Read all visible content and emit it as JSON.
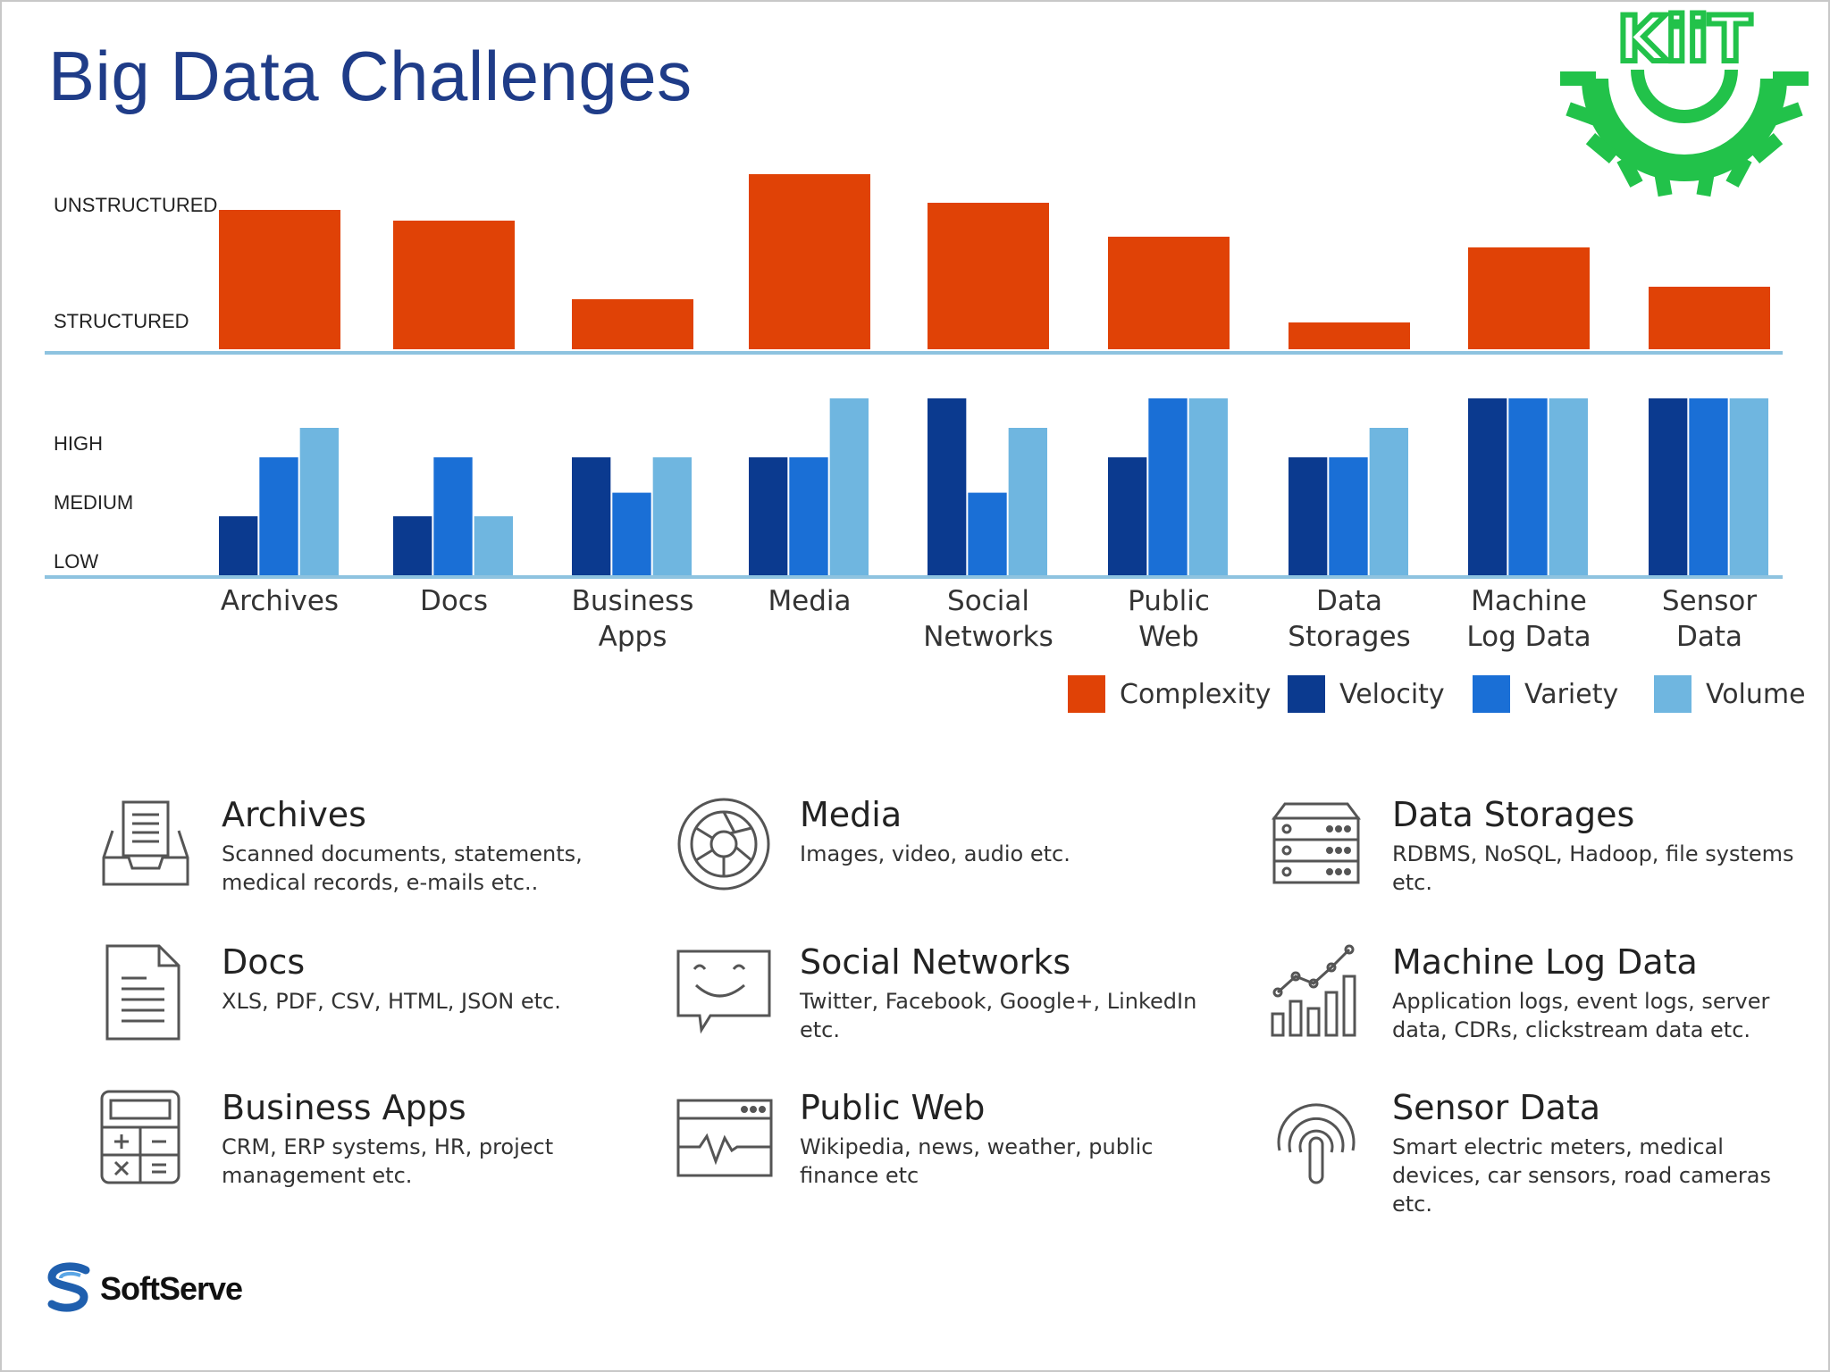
{
  "title": "Big Data Challenges",
  "logo": {
    "text": "KiiT",
    "color": "#22c24a"
  },
  "brand": {
    "name": "SoftServe",
    "color": "#1f5fae"
  },
  "colors": {
    "Complexity": "#e04206",
    "Velocity": "#0b3a8f",
    "Variety": "#1a6fd6",
    "Volume": "#6fb6e0",
    "axis": "#8ec3e0"
  },
  "chart_data": [
    {
      "type": "bar",
      "panel": "complexity",
      "categories": [
        "Archives",
        "Docs",
        "Business Apps",
        "Media",
        "Social Networks",
        "Public Web",
        "Data Storages",
        "Machine Log Data",
        "Sensor Data"
      ],
      "series": [
        {
          "name": "Complexity",
          "values": [
            0.78,
            0.72,
            0.28,
            0.98,
            0.82,
            0.63,
            0.15,
            0.57,
            0.35
          ]
        }
      ],
      "ytick_labels": [
        "STRUCTURED",
        "UNSTRUCTURED"
      ],
      "ylim": [
        0,
        1
      ]
    },
    {
      "type": "bar",
      "panel": "velocity-variety-volume",
      "categories": [
        "Archives",
        "Docs",
        "Business Apps",
        "Media",
        "Social Networks",
        "Public Web",
        "Data Storages",
        "Machine Log Data",
        "Sensor Data"
      ],
      "series": [
        {
          "name": "Velocity",
          "values": [
            1,
            1,
            2,
            2,
            3,
            2,
            2,
            3,
            3
          ]
        },
        {
          "name": "Variety",
          "values": [
            2,
            2,
            1.4,
            2,
            1.4,
            3,
            2,
            3,
            3
          ]
        },
        {
          "name": "Volume",
          "values": [
            2.5,
            1,
            2,
            3,
            2.5,
            3,
            2.5,
            3,
            3
          ]
        }
      ],
      "ytick_labels": [
        "LOW",
        "MEDIUM",
        "HIGH"
      ],
      "ylim": [
        0,
        3
      ]
    }
  ],
  "category_labels": [
    [
      "Archives"
    ],
    [
      "Docs"
    ],
    [
      "Business",
      "Apps"
    ],
    [
      "Media"
    ],
    [
      "Social",
      "Networks"
    ],
    [
      "Public",
      "Web"
    ],
    [
      "Data",
      "Storages"
    ],
    [
      "Machine",
      "Log Data"
    ],
    [
      "Sensor",
      "Data"
    ]
  ],
  "legend": [
    "Complexity",
    "Velocity",
    "Variety",
    "Volume"
  ],
  "items": [
    {
      "name": "Archives",
      "icon": "inbox-tray-icon",
      "desc": "Scanned documents, statements, medical records, e-mails etc.."
    },
    {
      "name": "Media",
      "icon": "camera-aperture-icon",
      "desc": "Images, video, audio etc."
    },
    {
      "name": "Data Storages",
      "icon": "server-rack-icon",
      "desc": "RDBMS, NoSQL, Hadoop, file systems etc."
    },
    {
      "name": "Docs",
      "icon": "document-icon",
      "desc": "XLS, PDF, CSV, HTML, JSON etc."
    },
    {
      "name": "Social Networks",
      "icon": "chat-smiley-icon",
      "desc": "Twitter, Facebook, Google+, LinkedIn etc."
    },
    {
      "name": "Machine Log Data",
      "icon": "trend-chart-icon",
      "desc": "Application logs, event logs, server data, CDRs, clickstream data etc."
    },
    {
      "name": "Business Apps",
      "icon": "calculator-icon",
      "desc": "CRM, ERP systems, HR, project management etc."
    },
    {
      "name": "Public Web",
      "icon": "browser-pulse-icon",
      "desc": "Wikipedia, news, weather, public finance etc"
    },
    {
      "name": "Sensor Data",
      "icon": "fingerprint-sensor-icon",
      "desc": "Smart electric meters, medical devices, car sensors, road cameras etc."
    }
  ]
}
